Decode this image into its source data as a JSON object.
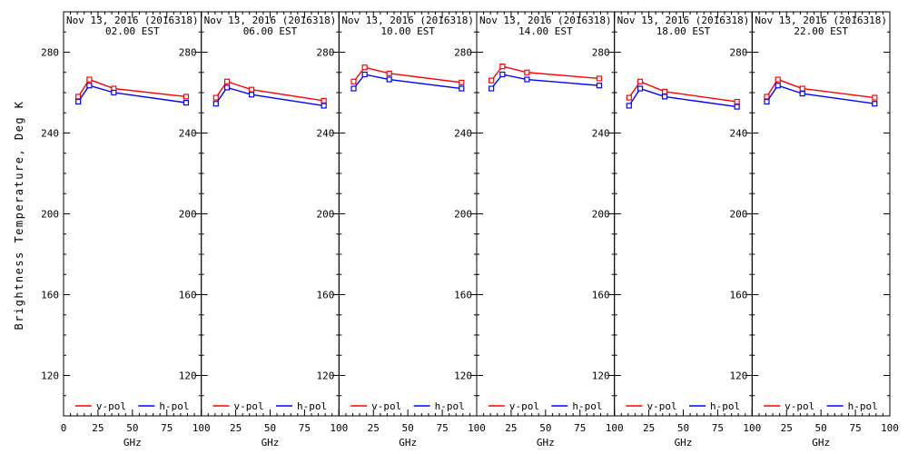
{
  "chart_data": {
    "type": "line",
    "xlabel": "GHz",
    "ylabel": "Brightness Temperature, Deg K",
    "xlim": [
      0,
      100
    ],
    "ylim": [
      100,
      300
    ],
    "xticks": [
      0,
      25,
      50,
      75,
      100
    ],
    "yticks": [
      120,
      160,
      200,
      240,
      280
    ],
    "x_minor_step": 5,
    "y_minor_step": 10,
    "grid": false,
    "legend_position": "bottom-inside-each-panel",
    "x": [
      10.65,
      18.7,
      36.5,
      89.0
    ],
    "legend": [
      {
        "name": "v-pol",
        "color": "#ff0000"
      },
      {
        "name": "h-pol",
        "color": "#0000ff"
      }
    ],
    "panels": [
      {
        "title": "Nov 13, 2016 (2016318)",
        "subtitle": "02.00 EST",
        "series": [
          {
            "name": "v-pol",
            "color": "#ff0000",
            "values": [
              258.0,
              266.5,
              262.0,
              258.0
            ]
          },
          {
            "name": "h-pol",
            "color": "#0000ff",
            "values": [
              255.5,
              263.5,
              260.0,
              255.0
            ]
          }
        ]
      },
      {
        "title": "Nov 13, 2016 (2016318)",
        "subtitle": "06.00 EST",
        "series": [
          {
            "name": "v-pol",
            "color": "#ff0000",
            "values": [
              257.5,
              265.5,
              261.5,
              256.0
            ]
          },
          {
            "name": "h-pol",
            "color": "#0000ff",
            "values": [
              254.5,
              262.5,
              259.0,
              253.5
            ]
          }
        ]
      },
      {
        "title": "Nov 13, 2016 (2016318)",
        "subtitle": "10.00 EST",
        "series": [
          {
            "name": "v-pol",
            "color": "#ff0000",
            "values": [
              265.5,
              272.5,
              269.5,
              265.0
            ]
          },
          {
            "name": "h-pol",
            "color": "#0000ff",
            "values": [
              262.0,
              269.0,
              266.5,
              262.0
            ]
          }
        ]
      },
      {
        "title": "Nov 13, 2016 (2016318)",
        "subtitle": "14.00 EST",
        "series": [
          {
            "name": "v-pol",
            "color": "#ff0000",
            "values": [
              266.0,
              273.0,
              270.0,
              267.0
            ]
          },
          {
            "name": "h-pol",
            "color": "#0000ff",
            "values": [
              262.0,
              269.0,
              266.5,
              263.5
            ]
          }
        ]
      },
      {
        "title": "Nov 13, 2016 (2016318)",
        "subtitle": "18.00 EST",
        "series": [
          {
            "name": "v-pol",
            "color": "#ff0000",
            "values": [
              257.5,
              265.5,
              260.5,
              255.5
            ]
          },
          {
            "name": "h-pol",
            "color": "#0000ff",
            "values": [
              253.5,
              262.0,
              258.0,
              253.0
            ]
          }
        ]
      },
      {
        "title": "Nov 13, 2016 (2016318)",
        "subtitle": "22.00 EST",
        "series": [
          {
            "name": "v-pol",
            "color": "#ff0000",
            "values": [
              258.0,
              266.5,
              262.0,
              257.5
            ]
          },
          {
            "name": "h-pol",
            "color": "#0000ff",
            "values": [
              255.5,
              263.5,
              259.5,
              254.5
            ]
          }
        ]
      }
    ]
  },
  "colors": {
    "background": "#ffffff",
    "axis": "#000000",
    "vpol": "#ff0000",
    "hpol": "#0000ff"
  }
}
